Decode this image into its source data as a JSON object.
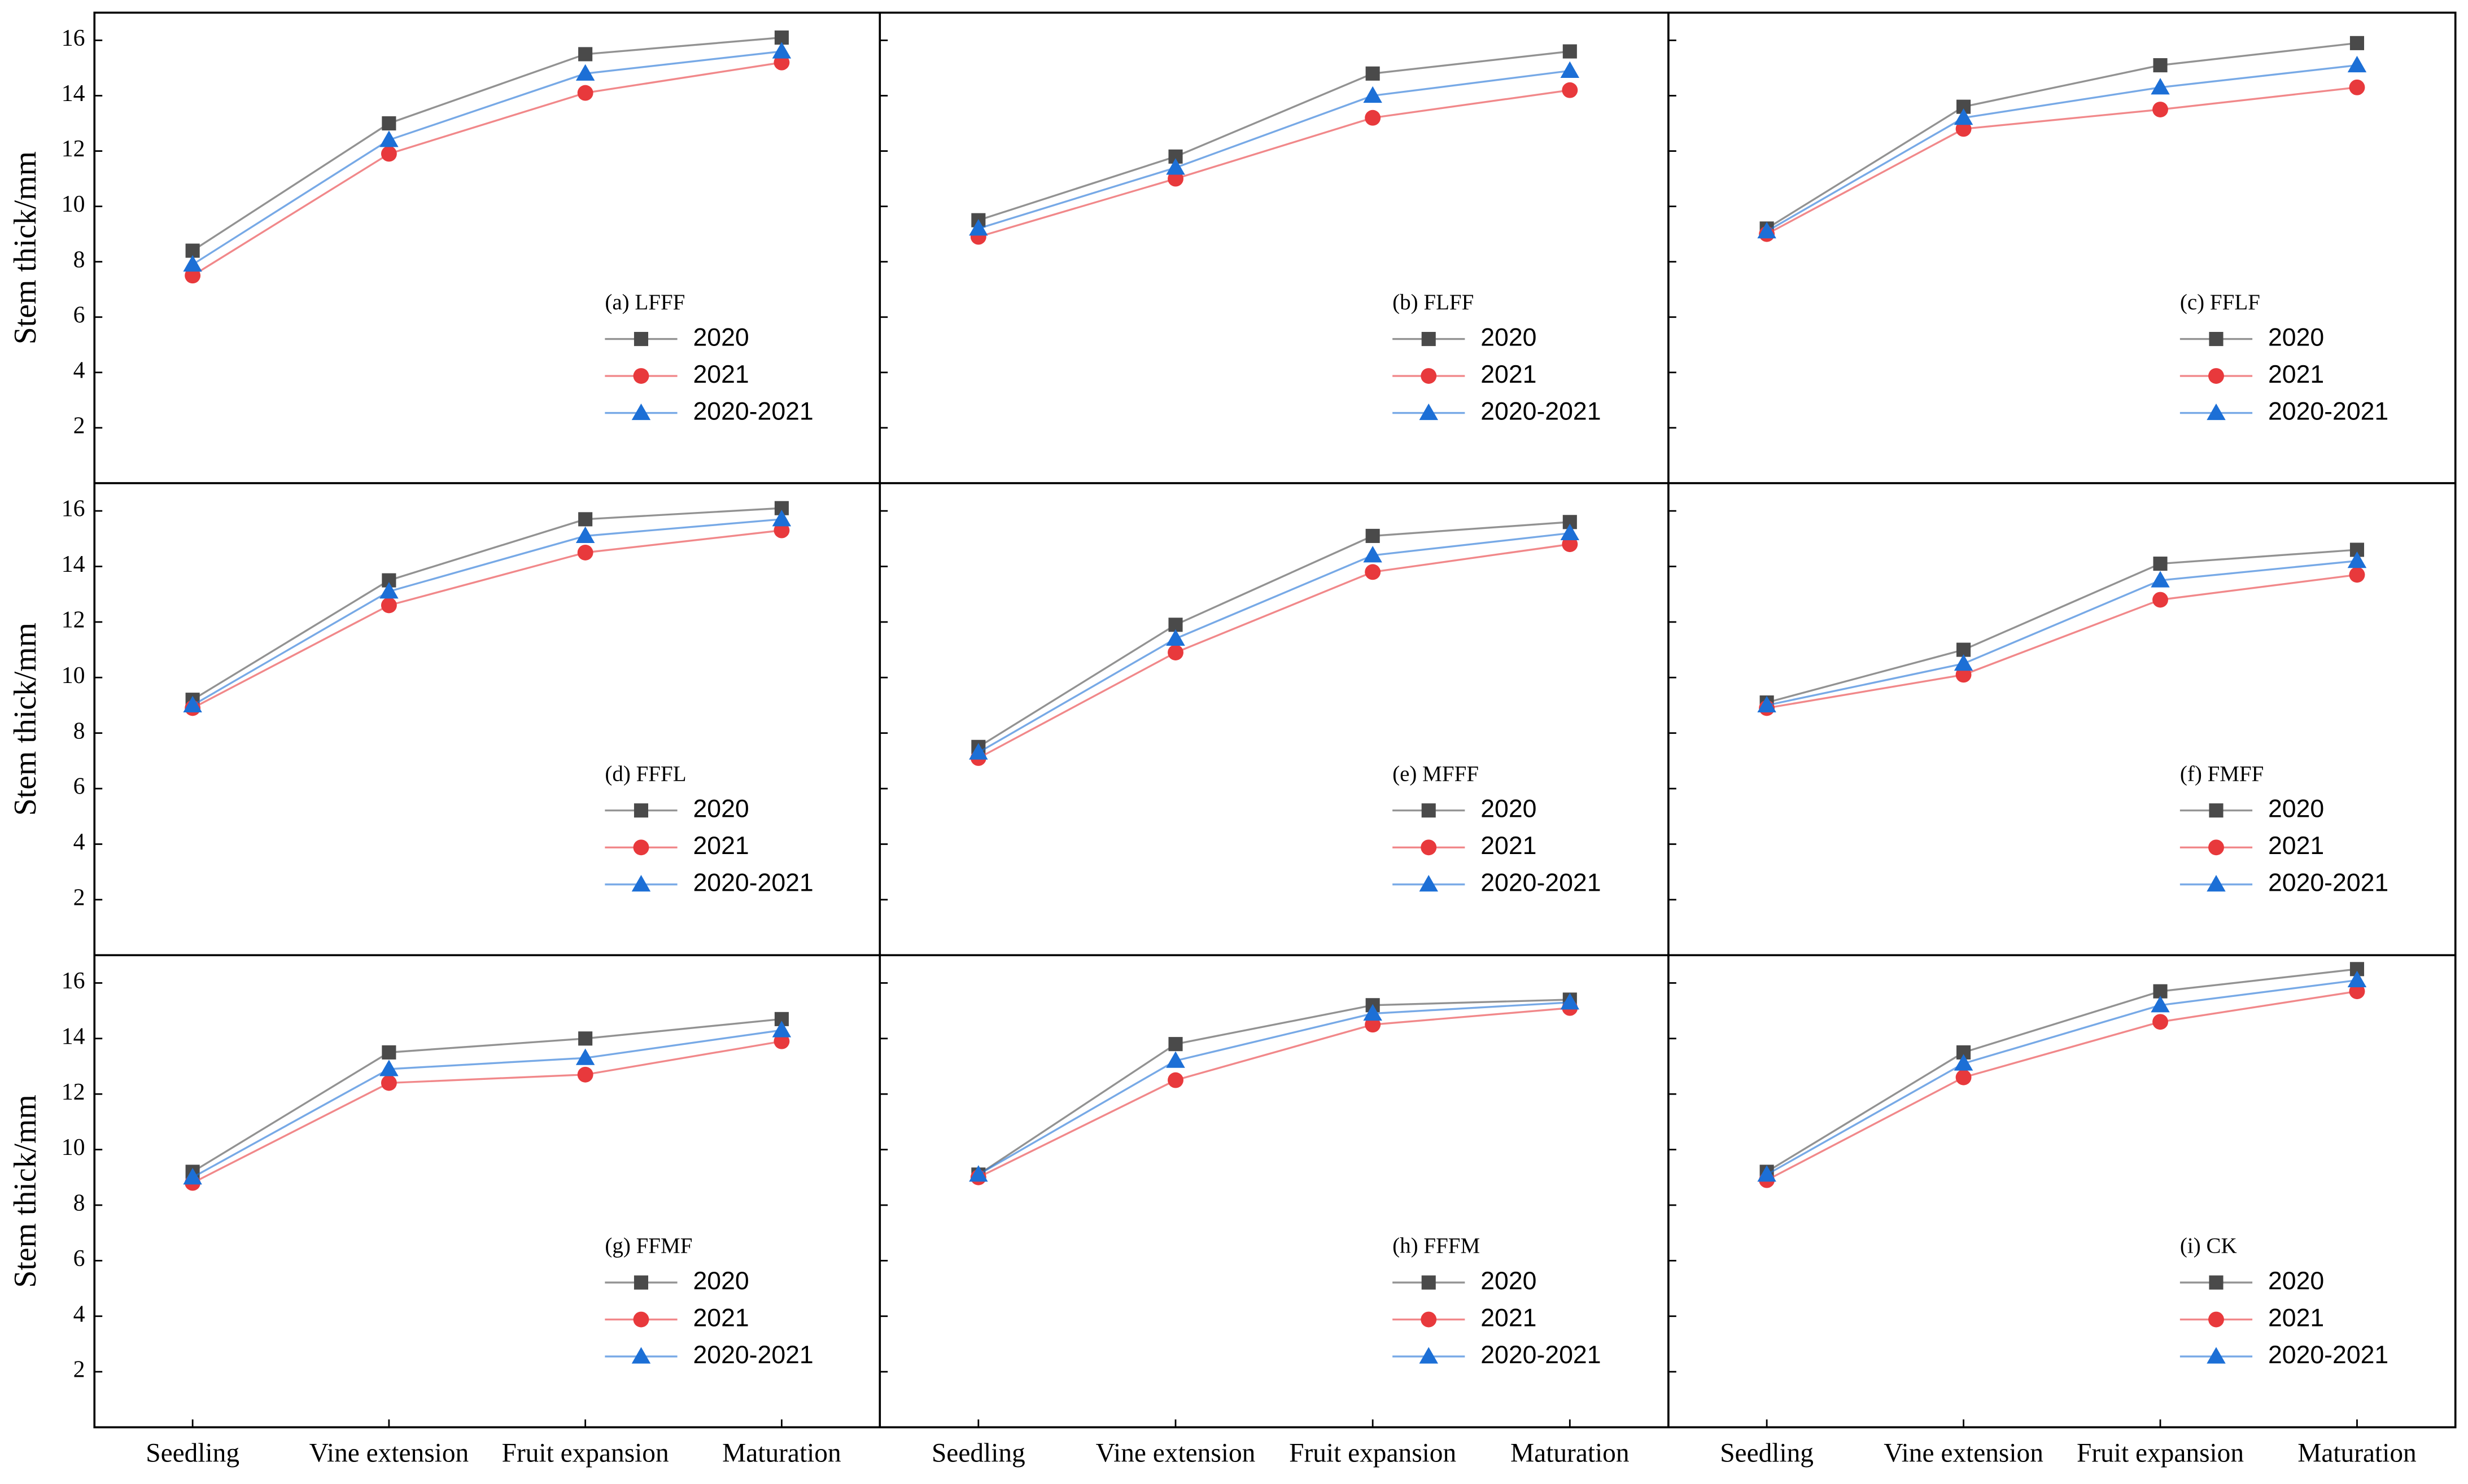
{
  "chart_data": [
    {
      "type": "line",
      "annotation": "(a) LFFF",
      "ylabel": "Stem thick/mm",
      "ylim": [
        0,
        17
      ],
      "yticks": [
        2,
        4,
        6,
        8,
        10,
        12,
        14,
        16
      ],
      "series": [
        {
          "name": "2020",
          "color": "#4a4a4a",
          "marker": "square",
          "values": [
            8.4,
            13.0,
            15.5,
            16.1
          ]
        },
        {
          "name": "2021",
          "color": "#e8393c",
          "marker": "circle",
          "values": [
            7.5,
            11.9,
            14.1,
            15.2
          ]
        },
        {
          "name": "2020-2021",
          "color": "#1c6fd6",
          "marker": "triangle",
          "values": [
            7.9,
            12.4,
            14.8,
            15.6
          ]
        }
      ]
    },
    {
      "type": "line",
      "annotation": "(b) FLFF",
      "ylim": [
        0,
        17
      ],
      "yticks": [
        2,
        4,
        6,
        8,
        10,
        12,
        14,
        16
      ],
      "series": [
        {
          "name": "2020",
          "color": "#4a4a4a",
          "marker": "square",
          "values": [
            9.5,
            11.8,
            14.8,
            15.6
          ]
        },
        {
          "name": "2021",
          "color": "#e8393c",
          "marker": "circle",
          "values": [
            8.9,
            11.0,
            13.2,
            14.2
          ]
        },
        {
          "name": "2020-2021",
          "color": "#1c6fd6",
          "marker": "triangle",
          "values": [
            9.2,
            11.4,
            14.0,
            14.9
          ]
        }
      ]
    },
    {
      "type": "line",
      "annotation": "(c) FFLF",
      "ylim": [
        0,
        17
      ],
      "yticks": [
        2,
        4,
        6,
        8,
        10,
        12,
        14,
        16
      ],
      "series": [
        {
          "name": "2020",
          "color": "#4a4a4a",
          "marker": "square",
          "values": [
            9.2,
            13.6,
            15.1,
            15.9
          ]
        },
        {
          "name": "2021",
          "color": "#e8393c",
          "marker": "circle",
          "values": [
            9.0,
            12.8,
            13.5,
            14.3
          ]
        },
        {
          "name": "2020-2021",
          "color": "#1c6fd6",
          "marker": "triangle",
          "values": [
            9.1,
            13.2,
            14.3,
            15.1
          ]
        }
      ]
    },
    {
      "type": "line",
      "annotation": "(d) FFFL",
      "ylabel": "Stem thick/mm",
      "ylim": [
        0,
        17
      ],
      "yticks": [
        2,
        4,
        6,
        8,
        10,
        12,
        14,
        16
      ],
      "series": [
        {
          "name": "2020",
          "color": "#4a4a4a",
          "marker": "square",
          "values": [
            9.2,
            13.5,
            15.7,
            16.1
          ]
        },
        {
          "name": "2021",
          "color": "#e8393c",
          "marker": "circle",
          "values": [
            8.9,
            12.6,
            14.5,
            15.3
          ]
        },
        {
          "name": "2020-2021",
          "color": "#1c6fd6",
          "marker": "triangle",
          "values": [
            9.0,
            13.1,
            15.1,
            15.7
          ]
        }
      ]
    },
    {
      "type": "line",
      "annotation": "(e) MFFF",
      "ylim": [
        0,
        17
      ],
      "yticks": [
        2,
        4,
        6,
        8,
        10,
        12,
        14,
        16
      ],
      "series": [
        {
          "name": "2020",
          "color": "#4a4a4a",
          "marker": "square",
          "values": [
            7.5,
            11.9,
            15.1,
            15.6
          ]
        },
        {
          "name": "2021",
          "color": "#e8393c",
          "marker": "circle",
          "values": [
            7.1,
            10.9,
            13.8,
            14.8
          ]
        },
        {
          "name": "2020-2021",
          "color": "#1c6fd6",
          "marker": "triangle",
          "values": [
            7.3,
            11.4,
            14.4,
            15.2
          ]
        }
      ]
    },
    {
      "type": "line",
      "annotation": "(f) FMFF",
      "ylim": [
        0,
        17
      ],
      "yticks": [
        2,
        4,
        6,
        8,
        10,
        12,
        14,
        16
      ],
      "series": [
        {
          "name": "2020",
          "color": "#4a4a4a",
          "marker": "square",
          "values": [
            9.1,
            11.0,
            14.1,
            14.6
          ]
        },
        {
          "name": "2021",
          "color": "#e8393c",
          "marker": "circle",
          "values": [
            8.9,
            10.1,
            12.8,
            13.7
          ]
        },
        {
          "name": "2020-2021",
          "color": "#1c6fd6",
          "marker": "triangle",
          "values": [
            9.0,
            10.5,
            13.5,
            14.2
          ]
        }
      ]
    },
    {
      "type": "line",
      "annotation": "(g) FFMF",
      "ylabel": "Stem thick/mm",
      "ylim": [
        0,
        17
      ],
      "yticks": [
        2,
        4,
        6,
        8,
        10,
        12,
        14,
        16
      ],
      "categories": [
        "Seedling",
        "Vine extension",
        "Fruit expansion",
        "Maturation"
      ],
      "series": [
        {
          "name": "2020",
          "color": "#4a4a4a",
          "marker": "square",
          "values": [
            9.2,
            13.5,
            14.0,
            14.7
          ]
        },
        {
          "name": "2021",
          "color": "#e8393c",
          "marker": "circle",
          "values": [
            8.8,
            12.4,
            12.7,
            13.9
          ]
        },
        {
          "name": "2020-2021",
          "color": "#1c6fd6",
          "marker": "triangle",
          "values": [
            9.0,
            12.9,
            13.3,
            14.3
          ]
        }
      ]
    },
    {
      "type": "line",
      "annotation": "(h) FFFM",
      "ylim": [
        0,
        17
      ],
      "yticks": [
        2,
        4,
        6,
        8,
        10,
        12,
        14,
        16
      ],
      "categories": [
        "Seedling",
        "Vine extension",
        "Fruit expansion",
        "Maturation"
      ],
      "series": [
        {
          "name": "2020",
          "color": "#4a4a4a",
          "marker": "square",
          "values": [
            9.1,
            13.8,
            15.2,
            15.4
          ]
        },
        {
          "name": "2021",
          "color": "#e8393c",
          "marker": "circle",
          "values": [
            9.0,
            12.5,
            14.5,
            15.1
          ]
        },
        {
          "name": "2020-2021",
          "color": "#1c6fd6",
          "marker": "triangle",
          "values": [
            9.1,
            13.2,
            14.9,
            15.3
          ]
        }
      ]
    },
    {
      "type": "line",
      "annotation": "(i) CK",
      "ylim": [
        0,
        17
      ],
      "yticks": [
        2,
        4,
        6,
        8,
        10,
        12,
        14,
        16
      ],
      "categories": [
        "Seedling",
        "Vine extension",
        "Fruit expansion",
        "Maturation"
      ],
      "series": [
        {
          "name": "2020",
          "color": "#4a4a4a",
          "marker": "square",
          "values": [
            9.2,
            13.5,
            15.7,
            16.5
          ]
        },
        {
          "name": "2021",
          "color": "#e8393c",
          "marker": "circle",
          "values": [
            8.9,
            12.6,
            14.6,
            15.7
          ]
        },
        {
          "name": "2020-2021",
          "color": "#1c6fd6",
          "marker": "triangle",
          "values": [
            9.1,
            13.1,
            15.2,
            16.1
          ]
        }
      ]
    }
  ]
}
